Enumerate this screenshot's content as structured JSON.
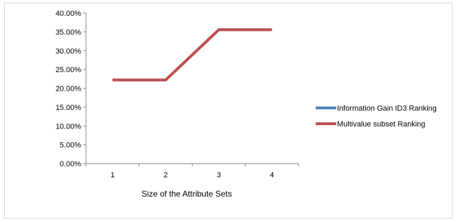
{
  "chart_data": {
    "type": "line",
    "title": "",
    "xlabel": "Size of the Attribute Sets",
    "ylabel": "",
    "categories": [
      "1",
      "2",
      "3",
      "4"
    ],
    "ylim": [
      0,
      40
    ],
    "ytick_labels": [
      "0.00%",
      "5.00%",
      "10.00%",
      "15.00%",
      "20.00%",
      "25.00%",
      "30.00%",
      "35.00%",
      "40.00%"
    ],
    "grid": false,
    "legend_position": "right",
    "series": [
      {
        "name": "Information Gain ID3 Ranking",
        "color": "#4f81bd",
        "values": [
          22.22,
          22.22,
          35.56,
          35.56
        ]
      },
      {
        "name": "Multivalue subset Ranking",
        "color": "#c0504d",
        "values": [
          22.22,
          22.22,
          35.56,
          35.56
        ]
      }
    ]
  }
}
